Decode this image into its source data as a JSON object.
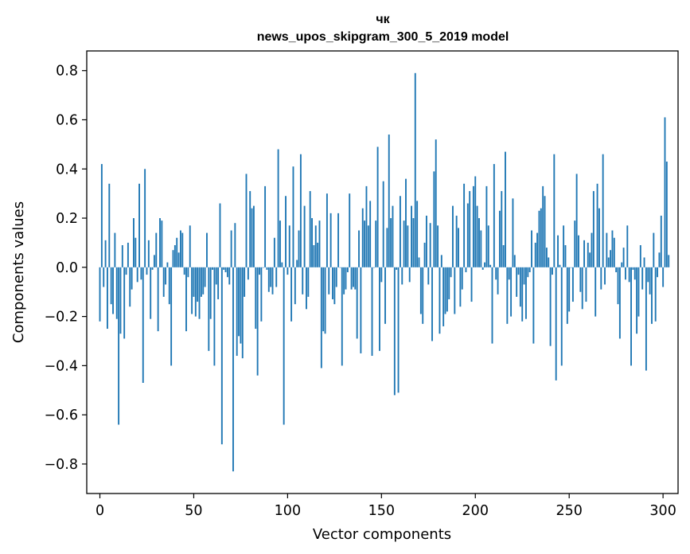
{
  "chart_data": {
    "type": "bar",
    "title": "чк",
    "subtitle": "news_upos_skipgram_300_5_2019 model",
    "xlabel": "Vector components",
    "ylabel": "Components values",
    "xlim": [
      -7,
      308
    ],
    "ylim": [
      -0.92,
      0.88
    ],
    "xticks": [
      0,
      50,
      100,
      150,
      200,
      250,
      300
    ],
    "xtick_labels": [
      "0",
      "50",
      "100",
      "150",
      "200",
      "250",
      "300"
    ],
    "yticks": [
      -0.8,
      -0.6,
      -0.4,
      -0.2,
      0.0,
      0.2,
      0.4,
      0.6,
      0.8
    ],
    "ytick_labels": [
      "−0.8",
      "−0.6",
      "−0.4",
      "−0.2",
      "0.0",
      "0.2",
      "0.4",
      "0.6",
      "0.8"
    ],
    "bar_color": "#1f77b4",
    "values": [
      -0.22,
      0.42,
      -0.08,
      0.11,
      -0.25,
      0.34,
      -0.15,
      -0.19,
      0.14,
      -0.21,
      -0.64,
      -0.27,
      0.09,
      -0.29,
      -0.03,
      0.1,
      -0.16,
      -0.09,
      0.2,
      0.12,
      -0.06,
      0.34,
      -0.05,
      -0.47,
      0.4,
      -0.03,
      0.11,
      -0.21,
      -0.01,
      0.05,
      0.14,
      -0.26,
      0.2,
      0.19,
      -0.12,
      -0.07,
      0.02,
      -0.15,
      -0.4,
      0.07,
      0.09,
      0.12,
      0.06,
      0.15,
      0.14,
      -0.03,
      -0.26,
      -0.04,
      0.17,
      -0.19,
      -0.12,
      -0.2,
      -0.14,
      -0.21,
      -0.12,
      -0.11,
      -0.08,
      0.14,
      -0.34,
      -0.21,
      -0.01,
      -0.4,
      -0.07,
      -0.13,
      0.26,
      -0.72,
      -0.01,
      -0.02,
      -0.04,
      -0.07,
      0.15,
      -0.83,
      0.18,
      -0.36,
      -0.28,
      -0.31,
      -0.37,
      -0.12,
      0.38,
      -0.05,
      0.31,
      0.24,
      0.25,
      -0.25,
      -0.44,
      -0.03,
      -0.22,
      0.0,
      0.33,
      -0.01,
      -0.1,
      -0.08,
      -0.11,
      0.12,
      -0.08,
      0.48,
      0.19,
      0.02,
      -0.64,
      0.29,
      -0.03,
      0.17,
      -0.22,
      0.41,
      -0.15,
      0.03,
      0.15,
      0.46,
      -0.11,
      0.25,
      -0.17,
      -0.12,
      0.31,
      0.2,
      0.09,
      0.17,
      0.1,
      0.19,
      -0.41,
      -0.26,
      -0.27,
      0.3,
      -0.11,
      0.22,
      -0.13,
      -0.15,
      -0.08,
      0.22,
      0.0,
      -0.4,
      -0.11,
      -0.09,
      -0.02,
      0.3,
      -0.09,
      -0.08,
      -0.09,
      -0.29,
      0.15,
      -0.35,
      0.24,
      0.19,
      0.33,
      0.17,
      0.27,
      -0.36,
      0.0,
      0.19,
      0.49,
      -0.34,
      -0.06,
      0.35,
      -0.23,
      0.16,
      0.54,
      0.2,
      0.25,
      -0.52,
      -0.01,
      -0.51,
      0.29,
      -0.07,
      0.19,
      0.36,
      0.17,
      -0.06,
      0.25,
      0.2,
      0.79,
      0.27,
      0.04,
      -0.19,
      -0.23,
      0.1,
      0.21,
      -0.07,
      0.18,
      -0.3,
      0.39,
      0.52,
      0.17,
      -0.27,
      0.05,
      -0.24,
      -0.19,
      -0.18,
      -0.13,
      -0.04,
      0.25,
      -0.19,
      0.21,
      0.16,
      -0.16,
      -0.09,
      0.34,
      -0.02,
      0.26,
      0.31,
      -0.14,
      0.33,
      0.37,
      0.25,
      0.2,
      0.15,
      -0.01,
      0.02,
      0.33,
      0.17,
      0.01,
      -0.31,
      0.42,
      -0.05,
      -0.11,
      0.23,
      0.31,
      0.09,
      0.47,
      -0.23,
      -0.05,
      -0.2,
      0.28,
      0.05,
      -0.12,
      -0.03,
      -0.16,
      -0.22,
      -0.07,
      -0.21,
      -0.04,
      -0.02,
      0.15,
      -0.31,
      0.1,
      0.14,
      0.23,
      0.24,
      0.33,
      0.29,
      0.08,
      0.04,
      -0.32,
      -0.03,
      0.46,
      -0.46,
      0.13,
      0.01,
      -0.4,
      0.17,
      0.09,
      -0.23,
      -0.18,
      0.0,
      -0.14,
      0.19,
      0.38,
      0.13,
      -0.1,
      -0.17,
      0.11,
      -0.14,
      0.1,
      0.06,
      0.14,
      0.31,
      -0.2,
      0.34,
      0.24,
      -0.09,
      0.46,
      -0.07,
      0.14,
      0.04,
      0.07,
      0.15,
      0.12,
      -0.02,
      -0.15,
      -0.29,
      0.02,
      0.08,
      -0.05,
      0.17,
      -0.06,
      -0.4,
      -0.01,
      -0.05,
      -0.27,
      -0.2,
      0.09,
      -0.09,
      0.04,
      -0.42,
      -0.06,
      -0.11,
      -0.23,
      0.14,
      -0.22,
      -0.04,
      0.06,
      0.21,
      -0.08,
      0.61,
      0.43,
      0.05
    ]
  }
}
